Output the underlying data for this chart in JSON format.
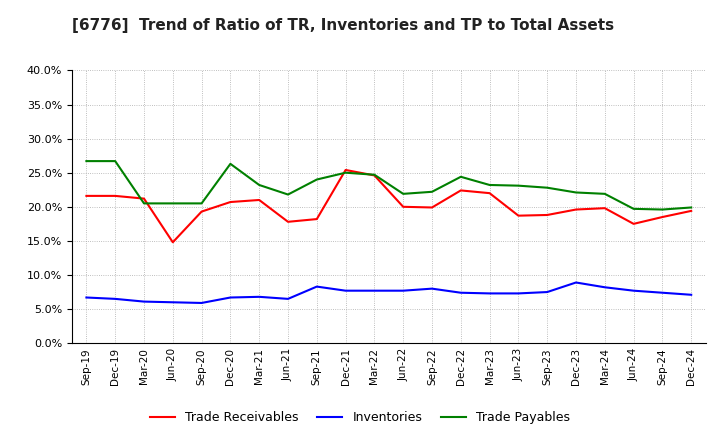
{
  "title": "[6776]  Trend of Ratio of TR, Inventories and TP to Total Assets",
  "x_labels": [
    "Sep-19",
    "Dec-19",
    "Mar-20",
    "Jun-20",
    "Sep-20",
    "Dec-20",
    "Mar-21",
    "Jun-21",
    "Sep-21",
    "Dec-21",
    "Mar-22",
    "Jun-22",
    "Sep-22",
    "Dec-22",
    "Mar-23",
    "Jun-23",
    "Sep-23",
    "Dec-23",
    "Mar-24",
    "Jun-24",
    "Sep-24",
    "Dec-24"
  ],
  "trade_receivables": [
    0.216,
    0.216,
    0.212,
    0.148,
    0.193,
    0.207,
    0.21,
    0.178,
    0.182,
    0.254,
    0.246,
    0.2,
    0.199,
    0.224,
    0.22,
    0.187,
    0.188,
    0.196,
    0.198,
    0.175,
    0.185,
    0.194
  ],
  "inventories": [
    0.067,
    0.065,
    0.061,
    0.06,
    0.059,
    0.067,
    0.068,
    0.065,
    0.083,
    0.077,
    0.077,
    0.077,
    0.08,
    0.074,
    0.073,
    0.073,
    0.075,
    0.089,
    0.082,
    0.077,
    0.074,
    0.071
  ],
  "trade_payables": [
    0.267,
    0.267,
    0.205,
    0.205,
    0.205,
    0.263,
    0.232,
    0.218,
    0.24,
    0.25,
    0.247,
    0.219,
    0.222,
    0.244,
    0.232,
    0.231,
    0.228,
    0.221,
    0.219,
    0.197,
    0.196,
    0.199
  ],
  "tr_color": "#FF0000",
  "inv_color": "#0000FF",
  "tp_color": "#008000",
  "ylim": [
    0.0,
    0.4
  ],
  "yticks": [
    0.0,
    0.05,
    0.1,
    0.15,
    0.2,
    0.25,
    0.3,
    0.35,
    0.4
  ],
  "background_color": "#ffffff",
  "grid_color": "#aaaaaa",
  "legend_labels": [
    "Trade Receivables",
    "Inventories",
    "Trade Payables"
  ]
}
